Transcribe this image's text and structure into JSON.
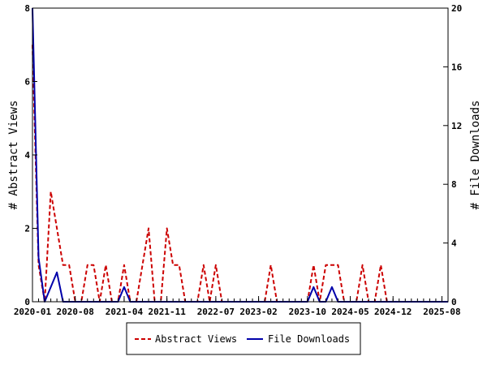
{
  "chart_data": {
    "type": "line",
    "title": "",
    "xlabel": "",
    "ylabel": "# Abstract Views",
    "y2label": "# File Downloads",
    "start_month": "2020-01",
    "months_count": 69,
    "xlim": [
      0,
      68
    ],
    "ylim": [
      0,
      8
    ],
    "y2lim": [
      0,
      20
    ],
    "yticks": [
      0,
      2,
      4,
      6,
      8
    ],
    "y2ticks": [
      0,
      4,
      8,
      12,
      16,
      20
    ],
    "xtick_labels": [
      {
        "month_index": 0,
        "label": "2020-01"
      },
      {
        "month_index": 7,
        "label": "2020-08"
      },
      {
        "month_index": 15,
        "label": "2021-04"
      },
      {
        "month_index": 22,
        "label": "2021-11"
      },
      {
        "month_index": 30,
        "label": "2022-07"
      },
      {
        "month_index": 37,
        "label": "2023-02"
      },
      {
        "month_index": 45,
        "label": "2023-10"
      },
      {
        "month_index": 52,
        "label": "2024-05"
      },
      {
        "month_index": 59,
        "label": "2024-12"
      },
      {
        "month_index": 67,
        "label": "2025-08"
      }
    ],
    "legend_position": "bottom",
    "series": [
      {
        "name": "Abstract Views",
        "axis": "left",
        "color": "#cc0000",
        "style": "dashed",
        "values": [
          7,
          1,
          0,
          3,
          2,
          1,
          1,
          0,
          0,
          1,
          1,
          0,
          1,
          0,
          0,
          1,
          0,
          0,
          1,
          2,
          0,
          0,
          2,
          1,
          1,
          0,
          0,
          0,
          1,
          0,
          1,
          0,
          0,
          0,
          0,
          0,
          0,
          0,
          0,
          1,
          0,
          0,
          0,
          0,
          0,
          0,
          1,
          0,
          1,
          1,
          1,
          0,
          0,
          0,
          1,
          0,
          0,
          1,
          0,
          0,
          0,
          0,
          0,
          0,
          0,
          0,
          0,
          0,
          0
        ]
      },
      {
        "name": "File Downloads",
        "axis": "right",
        "color": "#0000aa",
        "style": "solid",
        "values": [
          20,
          3,
          0,
          1,
          2,
          0,
          0,
          0,
          0,
          0,
          0,
          0,
          0,
          0,
          0,
          1,
          0,
          0,
          0,
          0,
          0,
          0,
          0,
          0,
          0,
          0,
          0,
          0,
          0,
          0,
          0,
          0,
          0,
          0,
          0,
          0,
          0,
          0,
          0,
          0,
          0,
          0,
          0,
          0,
          0,
          0,
          1,
          0,
          0,
          1,
          0,
          0,
          0,
          0,
          0,
          0,
          0,
          0,
          0,
          0,
          0,
          0,
          0,
          0,
          0,
          0,
          0,
          0,
          0
        ]
      }
    ]
  }
}
